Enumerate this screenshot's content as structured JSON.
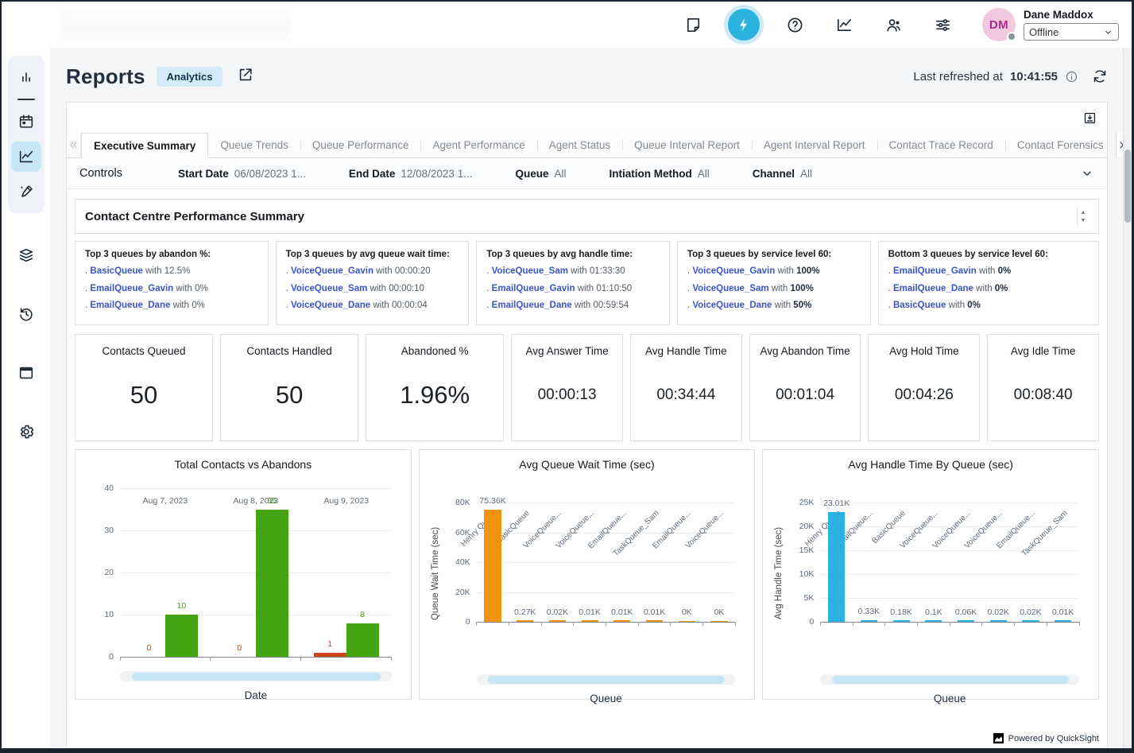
{
  "topbar": {
    "icons": [
      {
        "icon": "note-icon"
      },
      {
        "icon": "flash-icon",
        "active": true
      },
      {
        "icon": "help-icon"
      },
      {
        "icon": "line-chart-icon"
      },
      {
        "icon": "agents-icon"
      },
      {
        "icon": "sliders-icon"
      }
    ],
    "user": {
      "initials": "DM",
      "name": "Dane Maddox",
      "status": "Offline"
    }
  },
  "sidebar": {
    "group_icons": [
      {
        "icon": "bar-chart-icon"
      },
      {
        "icon": "divider"
      },
      {
        "icon": "calendar-icon"
      },
      {
        "icon": "line-chart-icon",
        "active": true
      },
      {
        "icon": "brush-icon"
      }
    ],
    "icons": [
      {
        "icon": "layers-icon"
      },
      {
        "icon": "history-icon"
      },
      {
        "icon": "window-icon"
      },
      {
        "icon": "gear-icon"
      }
    ]
  },
  "header": {
    "title": "Reports",
    "badge": "Analytics",
    "refresh_label": "Last refreshed at",
    "refresh_time": "10:41:55"
  },
  "tabs": {
    "active_index": 0,
    "items": [
      "Executive Summary",
      "Queue Trends",
      "Queue Performance",
      "Agent Performance",
      "Agent Status",
      "Queue Interval Report",
      "Agent Interval Report",
      "Contact Trace Record",
      "Contact Forensics"
    ]
  },
  "controls": {
    "title": "Controls",
    "filters": [
      {
        "label": "Start Date",
        "value": "06/08/2023 1..."
      },
      {
        "label": "End Date",
        "value": "12/08/2023 1..."
      },
      {
        "label": "Queue",
        "value": "All"
      },
      {
        "label": "Intiation Method",
        "value": "All"
      },
      {
        "label": "Channel",
        "value": "All"
      }
    ]
  },
  "summary": {
    "title": "Contact Centre Performance Summary",
    "bullet": ".",
    "connector": "with",
    "panels": [
      {
        "title": "Top 3 queues by abandon %:",
        "items": [
          {
            "queue": "BasicQueue",
            "value": "12.5%"
          },
          {
            "queue": "EmailQueue_Gavin",
            "value": "0%"
          },
          {
            "queue": "EmailQueue_Dane",
            "value": "0%"
          }
        ]
      },
      {
        "title": "Top 3 queues by avg queue wait time:",
        "items": [
          {
            "queue": "VoiceQueue_Gavin",
            "value": "00:00:20"
          },
          {
            "queue": "VoiceQueue_Sam",
            "value": "00:00:10"
          },
          {
            "queue": "VoiceQueue_Dane",
            "value": "00:00:04"
          }
        ]
      },
      {
        "title": "Top 3 queues by avg handle time:",
        "items": [
          {
            "queue": "VoiceQueue_Sam",
            "value": "01:33:30"
          },
          {
            "queue": "EmailQueue_Gavin",
            "value": "01:10:50"
          },
          {
            "queue": "EmailQueue_Dane",
            "value": "00:59:54"
          }
        ]
      },
      {
        "title": "Top 3 queues by service level 60:",
        "bold_values": true,
        "items": [
          {
            "queue": "VoiceQueue_Gavin",
            "value": "100%"
          },
          {
            "queue": "VoiceQueue_Sam",
            "value": "100%"
          },
          {
            "queue": "VoiceQueue_Dane",
            "value": "50%"
          }
        ]
      },
      {
        "title": "Bottom 3 queues by service level 60:",
        "bold_values": true,
        "items": [
          {
            "queue": "EmailQueue_Gavin",
            "value": "0%"
          },
          {
            "queue": "EmailQueue_Dane",
            "value": "0%"
          },
          {
            "queue": "BasicQueue",
            "value": "0%"
          }
        ]
      }
    ]
  },
  "kpis": [
    {
      "label": "Contacts Queued",
      "value": "50",
      "emphasis": true
    },
    {
      "label": "Contacts Handled",
      "value": "50",
      "emphasis": true
    },
    {
      "label": "Abandoned %",
      "value": "1.96%",
      "emphasis": true
    },
    {
      "label": "Avg Answer Time",
      "value": "00:00:13"
    },
    {
      "label": "Avg Handle Time",
      "value": "00:34:44"
    },
    {
      "label": "Avg Abandon Time",
      "value": "00:01:04"
    },
    {
      "label": "Avg Hold Time",
      "value": "00:04:26"
    },
    {
      "label": "Avg Idle Time",
      "value": "00:08:40"
    }
  ],
  "chart_data": [
    {
      "type": "bar",
      "grouped": true,
      "title": "Total Contacts vs Abandons",
      "xlabel": "Date",
      "ylabel": "",
      "ylim": [
        0,
        40
      ],
      "grid": true,
      "rotated_xlabels": false,
      "yticks": [
        {
          "value": 0,
          "label": "0"
        },
        {
          "value": 10,
          "label": "10"
        },
        {
          "value": 20,
          "label": "20"
        },
        {
          "value": 30,
          "label": "30"
        },
        {
          "value": 40,
          "label": "40"
        }
      ],
      "categories": [
        "Aug 7, 2023",
        "Aug 8, 2023",
        "Aug 9, 2023"
      ],
      "series": [
        {
          "name": "Abandons",
          "color": "#cf4318",
          "values": [
            0,
            0,
            1
          ],
          "labels": [
            "0",
            "0",
            "1"
          ]
        },
        {
          "name": "Total Contacts",
          "color": "#44a412",
          "values": [
            10,
            35,
            8
          ],
          "labels": [
            "10",
            "35",
            "8"
          ]
        }
      ]
    },
    {
      "type": "bar",
      "title": "Avg Queue Wait Time (sec)",
      "xlabel": "Queue",
      "ylabel": "Queue Wait Time (sec)",
      "ylim": [
        0,
        80000
      ],
      "grid": true,
      "rotated_xlabels": true,
      "yticks": [
        {
          "value": 0,
          "label": "0"
        },
        {
          "value": 20000,
          "label": "20K"
        },
        {
          "value": 40000,
          "label": "40K"
        },
        {
          "value": 60000,
          "label": "60K"
        },
        {
          "value": 80000,
          "label": "80K"
        }
      ],
      "categories": [
        "Henry Queue",
        "BasicQueue",
        "VoiceQueue...",
        "VoiceQueue...",
        "EmailQueue...",
        "TaskQueue_Sam",
        "EmailQueue...",
        "VoiceQueue..."
      ],
      "color": "#f2930d",
      "label_color": "#5f6b7a",
      "values": [
        75360,
        270,
        20,
        10,
        10,
        10,
        0,
        0
      ],
      "labels": [
        "75.36K",
        "0.27K",
        "0.02K",
        "0.01K",
        "0.01K",
        "0.01K",
        "0K",
        "0K"
      ]
    },
    {
      "type": "bar",
      "title": "Avg Handle Time By Queue (sec)",
      "xlabel": "Queue",
      "ylabel": "Avg Handle Time (sec)",
      "ylim": [
        0,
        25000
      ],
      "grid": true,
      "rotated_xlabels": true,
      "yticks": [
        {
          "value": 0,
          "label": "0"
        },
        {
          "value": 5000,
          "label": "5K"
        },
        {
          "value": 10000,
          "label": "10K"
        },
        {
          "value": 15000,
          "label": "15K"
        },
        {
          "value": 20000,
          "label": "20K"
        },
        {
          "value": 25000,
          "label": "25K"
        }
      ],
      "categories": [
        "Henry Queue",
        "EmailQueue...",
        "BasicQueue",
        "VoiceQueue...",
        "VoiceQueue...",
        "VoiceQueue...",
        "EmailQueue...",
        "TaskQueue_Sam"
      ],
      "color": "#2bb2e3",
      "label_color": "#5f6b7a",
      "values": [
        23010,
        330,
        180,
        100,
        60,
        20,
        20,
        10
      ],
      "labels": [
        "23.01K",
        "0.33K",
        "0.18K",
        "0.1K",
        "0.06K",
        "0.02K",
        "0.02K",
        "0.01K"
      ]
    }
  ],
  "footer": {
    "powered_by": "Powered by QuickSight"
  }
}
